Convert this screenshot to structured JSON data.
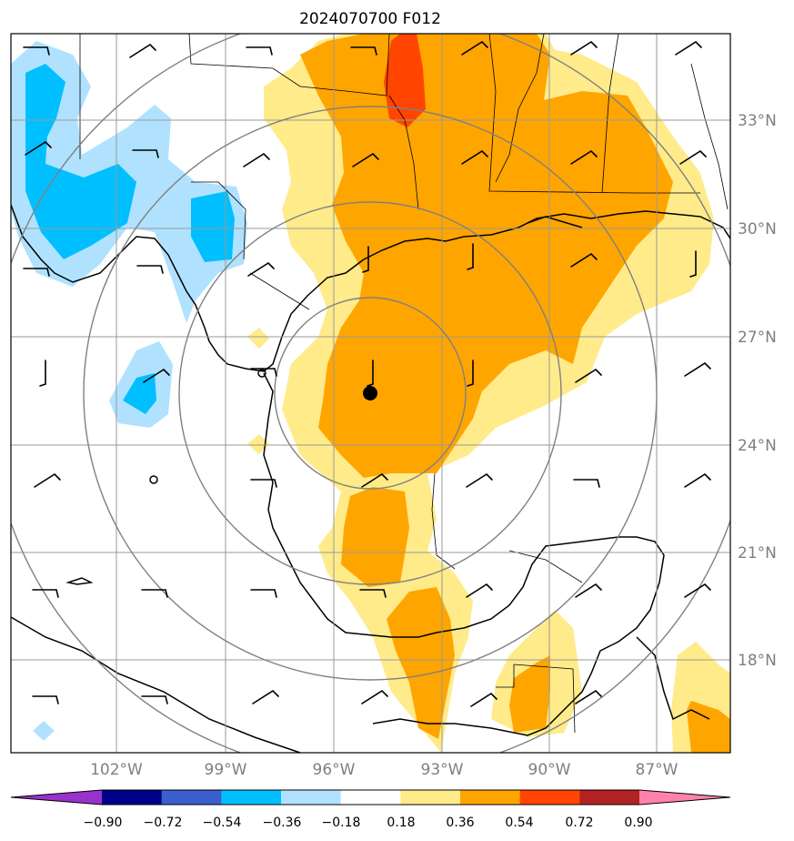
{
  "figure": {
    "title": "2024070700 F012",
    "lat_labels": [
      "33°N",
      "30°N",
      "27°N",
      "24°N",
      "21°N",
      "18°N"
    ],
    "lon_labels": [
      "102°W",
      "99°W",
      "96°W",
      "93°W",
      "90°W",
      "87°W"
    ],
    "colorbar": {
      "ticks": [
        "−0.90",
        "−0.72",
        "−0.54",
        "−0.36",
        "−0.18",
        "0.18",
        "0.36",
        "0.54",
        "0.72",
        "0.90"
      ],
      "colors": [
        "#9932cc",
        "#00008b",
        "#3a5fcd",
        "#00bfff",
        "#b0e2ff",
        "#ffffff",
        "#ffeb8a",
        "#ffa500",
        "#ff4500",
        "#b22222",
        "#ff82ab"
      ]
    },
    "storm_center": {
      "lat": 25.4,
      "lon": -95.0
    },
    "range_rings": 4
  }
}
